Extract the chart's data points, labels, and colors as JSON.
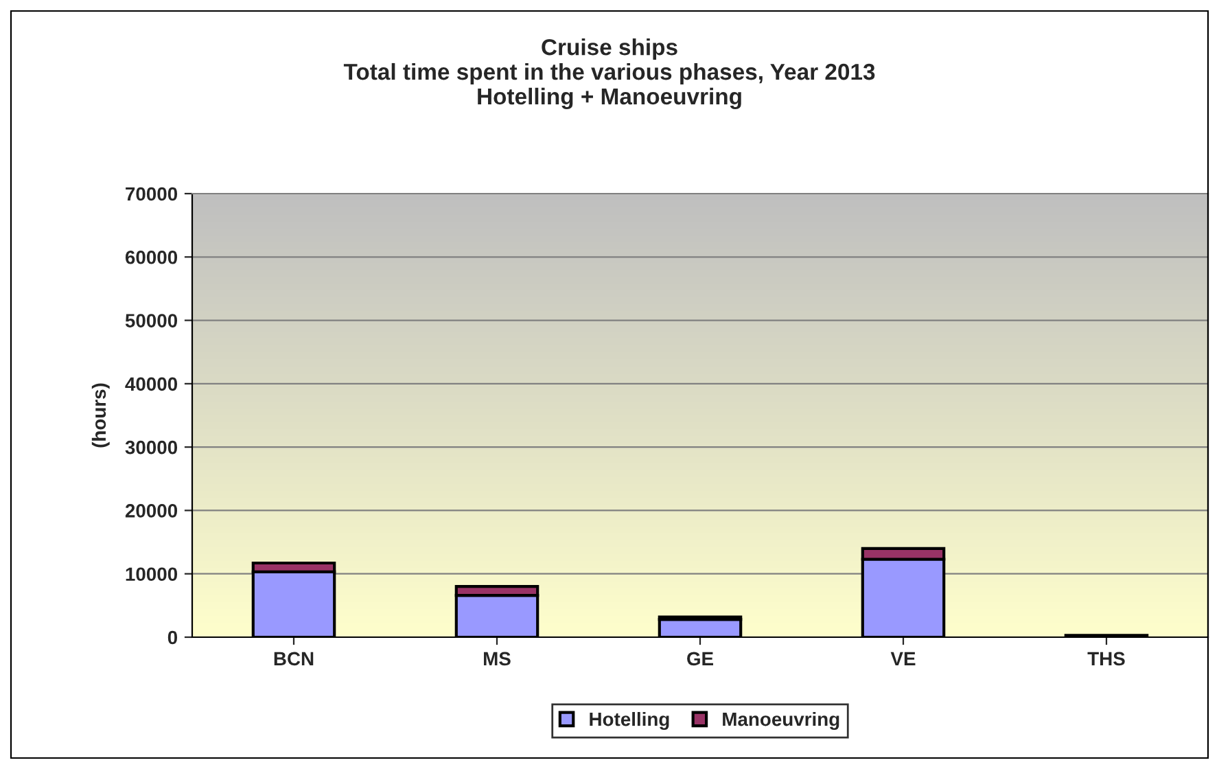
{
  "chart_data": {
    "type": "bar",
    "title": "Cruise ships\nTotal time spent in the various phases, Year 2013\nHotelling + Manoeuvring",
    "ylabel": "(hours)",
    "categories": [
      "BCN",
      "MS",
      "GE",
      "VE",
      "THS"
    ],
    "stacked": true,
    "series": [
      {
        "name": "Hotelling",
        "color": "#9999ff",
        "values": [
          10300,
          6600,
          2800,
          12300,
          300
        ]
      },
      {
        "name": "Manoeuvring",
        "color": "#993366",
        "values": [
          1400,
          1400,
          400,
          1700,
          null
        ]
      }
    ],
    "ylim": [
      0,
      70000
    ],
    "yticks": [
      0,
      10000,
      20000,
      30000,
      40000,
      50000,
      60000,
      70000
    ],
    "grid": "y",
    "legend": "bottom"
  }
}
